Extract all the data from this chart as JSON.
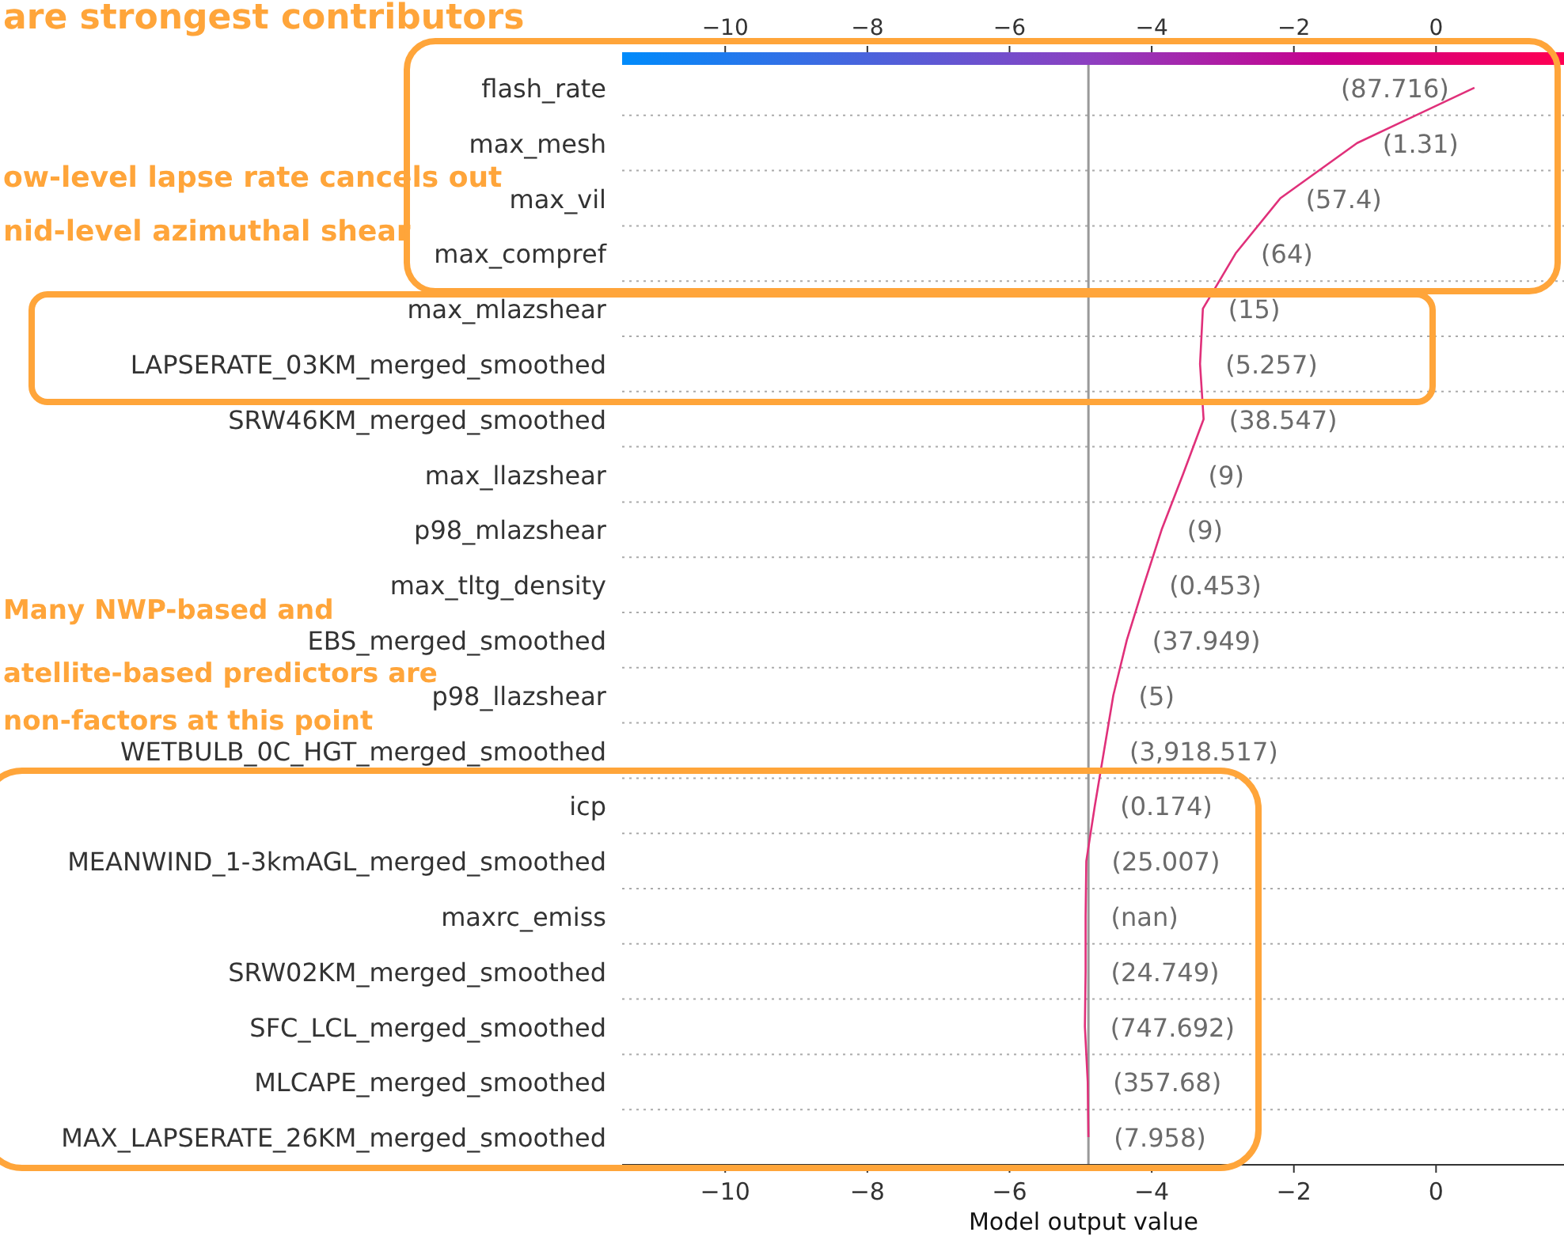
{
  "chart_data": {
    "type": "line",
    "orientation": "horizontal",
    "xlabel": "Model output value",
    "categories": [
      "flash_rate",
      "max_mesh",
      "max_vil",
      "max_compref",
      "max_mlazshear",
      "LAPSERATE_03KM_merged_smoothed",
      "SRW46KM_merged_smoothed",
      "max_llazshear",
      "p98_mlazshear",
      "max_tltg_density",
      "EBS_merged_smoothed",
      "p98_llazshear",
      "WETBULB_0C_HGT_merged_smoothed",
      "icp",
      "MEANWIND_1-3kmAGL_merged_smoothed",
      "maxrc_emiss",
      "SRW02KM_merged_smoothed",
      "SFC_LCL_merged_smoothed",
      "MLCAPE_merged_smoothed",
      "MAX_LAPSERATE_26KM_merged_smoothed"
    ],
    "series": [
      {
        "color": "#e0307a",
        "values": [
          0.54,
          -1.11,
          -2.19,
          -2.82,
          -3.28,
          -3.32,
          -3.27,
          -3.56,
          -3.86,
          -4.11,
          -4.35,
          -4.54,
          -4.67,
          -4.8,
          -4.92,
          -4.93,
          -4.93,
          -4.94,
          -4.9,
          -4.89
        ]
      }
    ],
    "xlim": [
      -11.45,
      1.8
    ],
    "xticks": [
      {
        "value": -10,
        "label": "−10"
      },
      {
        "value": -8,
        "label": "−8"
      },
      {
        "value": -6,
        "label": "−6"
      },
      {
        "value": -4,
        "label": "−4"
      },
      {
        "value": -2,
        "label": "−2"
      },
      0
    ],
    "x2lim": [
      -11.45,
      1.8
    ],
    "x2ticks": [
      {
        "value": -10,
        "label": "−10"
      },
      {
        "value": -8,
        "label": "−8"
      },
      {
        "value": -6,
        "label": "−6"
      },
      {
        "value": -4,
        "label": "−4"
      },
      {
        "value": -2,
        "label": "−2"
      },
      0
    ],
    "ref_lines": [
      {
        "axis": "x",
        "value": -4.89,
        "color": "#999999"
      }
    ],
    "grid": "y",
    "marker": "none",
    "line_style": "solid",
    "annotations": [
      "are strongest contributors",
      "ow-level lapse rate cancels out\nnid-level azimuthal shear",
      "Many NWP-based and\natellite-based predictors are\nnon-factors at this point",
      "(87.716)",
      "(1.31)",
      "(57.4)",
      "(64)",
      "(15)",
      "(5.257)",
      "(38.547)",
      "(9)",
      "(9)",
      "(0.453)",
      "(37.949)",
      "(5)",
      "(3,918.517)",
      "(0.174)",
      "(25.007)",
      "(nan)",
      "(24.749)",
      "(747.692)",
      "(357.68)",
      "(7.958)"
    ]
  }
}
